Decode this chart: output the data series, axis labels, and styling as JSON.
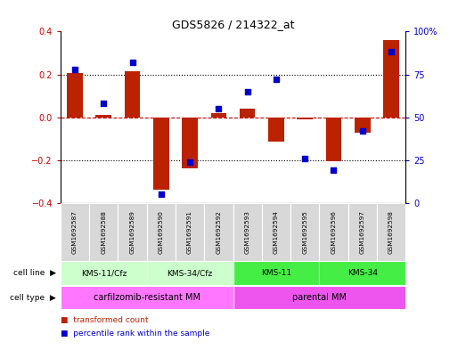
{
  "title": "GDS5826 / 214322_at",
  "samples": [
    "GSM1692587",
    "GSM1692588",
    "GSM1692589",
    "GSM1692590",
    "GSM1692591",
    "GSM1692592",
    "GSM1692593",
    "GSM1692594",
    "GSM1692595",
    "GSM1692596",
    "GSM1692597",
    "GSM1692598"
  ],
  "transformed_count": [
    0.205,
    0.01,
    0.215,
    -0.34,
    -0.24,
    0.02,
    0.04,
    -0.115,
    -0.01,
    -0.205,
    -0.07,
    0.36
  ],
  "percentile_rank": [
    78,
    58,
    82,
    5,
    24,
    55,
    65,
    72,
    26,
    19,
    42,
    88
  ],
  "cell_line_groups": [
    {
      "label": "KMS-11/Cfz",
      "start": 0,
      "end": 3,
      "color": "#ccffcc"
    },
    {
      "label": "KMS-34/Cfz",
      "start": 3,
      "end": 6,
      "color": "#ccffcc"
    },
    {
      "label": "KMS-11",
      "start": 6,
      "end": 9,
      "color": "#44ee44"
    },
    {
      "label": "KMS-34",
      "start": 9,
      "end": 12,
      "color": "#44ee44"
    }
  ],
  "cell_type_groups": [
    {
      "label": "carfilzomib-resistant MM",
      "start": 0,
      "end": 6,
      "color": "#ff77ff"
    },
    {
      "label": "parental MM",
      "start": 6,
      "end": 12,
      "color": "#ee55ee"
    }
  ],
  "bar_color": "#bb2200",
  "dot_color": "#0000cc",
  "ylim_left": [
    -0.4,
    0.4
  ],
  "ylim_right": [
    0,
    100
  ],
  "yticks_left": [
    -0.4,
    -0.2,
    0.0,
    0.2,
    0.4
  ],
  "yticks_right": [
    0,
    25,
    50,
    75,
    100
  ],
  "hlines_dotted": [
    -0.2,
    0.2
  ],
  "hline_dashed": 0.0,
  "legend_items": [
    {
      "label": "transformed count",
      "color": "#bb2200"
    },
    {
      "label": "percentile rank within the sample",
      "color": "#0000cc"
    }
  ],
  "sample_box_color": "#d8d8d8",
  "background_color": "#ffffff"
}
